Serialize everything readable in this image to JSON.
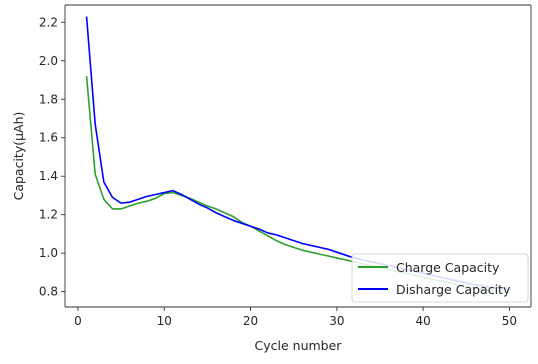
{
  "chart_data": {
    "type": "line",
    "title": "",
    "xlabel": "Cycle number",
    "ylabel": "Capacity(μAh)",
    "xlim": [
      -1.5,
      52.5
    ],
    "ylim": [
      0.72,
      2.29
    ],
    "xticks": [
      0,
      10,
      20,
      30,
      40,
      50
    ],
    "yticks": [
      0.8,
      1.0,
      1.2,
      1.4,
      1.6,
      1.8,
      2.0,
      2.2
    ],
    "grid": false,
    "legend": "lower-right",
    "series": [
      {
        "name": "Charge Capacity",
        "color": "#2ca02c",
        "x": [
          1,
          2,
          3,
          4,
          5,
          6,
          7,
          8,
          9,
          10,
          11,
          12,
          13,
          14,
          15,
          16,
          17,
          18,
          19,
          20,
          21,
          22,
          23,
          24,
          25,
          26,
          27,
          28,
          29,
          30,
          31,
          32,
          33,
          34,
          35,
          36,
          37,
          38,
          39,
          40,
          41,
          42,
          43,
          44,
          45,
          46,
          47,
          48,
          49,
          50
        ],
        "y": [
          1.92,
          1.41,
          1.28,
          1.23,
          1.23,
          1.245,
          1.26,
          1.27,
          1.285,
          1.31,
          1.315,
          1.3,
          1.285,
          1.265,
          1.245,
          1.23,
          1.21,
          1.19,
          1.16,
          1.14,
          1.115,
          1.09,
          1.065,
          1.045,
          1.03,
          1.015,
          1.005,
          0.995,
          0.985,
          0.975,
          0.965,
          0.955,
          0.945,
          0.935,
          0.925,
          0.915,
          0.905,
          0.895,
          0.885,
          0.875,
          0.865,
          0.855,
          0.845,
          0.835,
          0.825,
          0.818,
          0.81,
          0.805,
          0.8,
          0.795
        ]
      },
      {
        "name": "Disharge Capacity",
        "color": "#0000ff",
        "x": [
          1,
          2,
          3,
          4,
          5,
          6,
          7,
          8,
          9,
          10,
          11,
          12,
          13,
          14,
          15,
          16,
          17,
          18,
          19,
          20,
          21,
          22,
          23,
          24,
          25,
          26,
          27,
          28,
          29,
          30,
          31,
          32,
          33,
          34,
          35,
          36,
          37,
          38,
          39,
          40,
          41,
          42,
          43,
          44,
          45,
          46,
          47,
          48,
          49,
          50
        ],
        "y": [
          2.23,
          1.67,
          1.37,
          1.29,
          1.26,
          1.265,
          1.28,
          1.295,
          1.305,
          1.315,
          1.325,
          1.305,
          1.28,
          1.255,
          1.235,
          1.21,
          1.19,
          1.17,
          1.155,
          1.14,
          1.125,
          1.105,
          1.095,
          1.08,
          1.065,
          1.05,
          1.04,
          1.03,
          1.02,
          1.005,
          0.99,
          0.975,
          0.965,
          0.955,
          0.945,
          0.935,
          0.925,
          0.915,
          0.905,
          0.895,
          0.885,
          0.875,
          0.865,
          0.855,
          0.845,
          0.835,
          0.828,
          0.82,
          0.815,
          0.81
        ]
      }
    ]
  }
}
